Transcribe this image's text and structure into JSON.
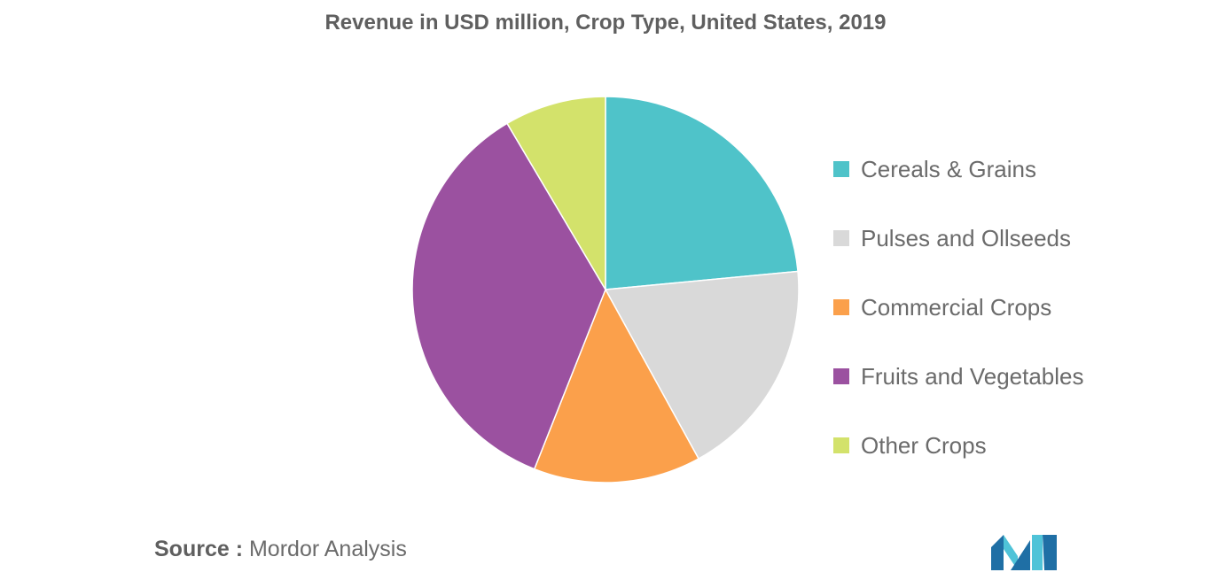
{
  "colors": {
    "cereals": "#4fc3c9",
    "pulses": "#d9d9d9",
    "commercial": "#fba04b",
    "fruits": "#9b51a0",
    "other": "#d3e26b",
    "logo_dark": "#1f6fa5",
    "logo_light": "#4fc3d8"
  },
  "chart_data": {
    "type": "pie",
    "title": "Revenue in USD million, Crop Type, United States, 2019",
    "start_angle_deg": 0,
    "direction": "clockwise",
    "legend_position": "right",
    "slices": [
      {
        "label": "Cereals & Grains",
        "value": 23.5,
        "color_key": "cereals"
      },
      {
        "label": "Pulses and Ollseeds",
        "value": 18.5,
        "color_key": "pulses"
      },
      {
        "label": "Commercial Crops",
        "value": 14.0,
        "color_key": "commercial"
      },
      {
        "label": "Fruits and Vegetables",
        "value": 35.5,
        "color_key": "fruits"
      },
      {
        "label": "Other Crops",
        "value": 8.5,
        "color_key": "other"
      }
    ]
  },
  "source": {
    "prefix": "Source :",
    "text": "Mordor Analysis"
  },
  "logo": {
    "icon": "mordor-intelligence-logo"
  }
}
